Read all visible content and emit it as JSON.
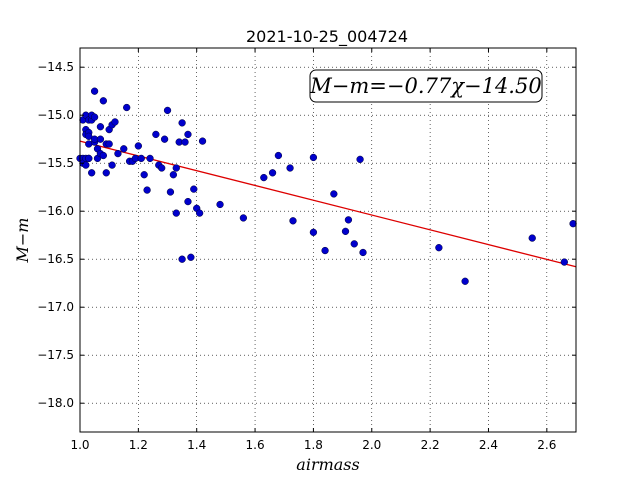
{
  "chart_data": {
    "type": "scatter",
    "title": "2021-10-25_004724",
    "xlabel": "airmass",
    "ylabel": "M−m",
    "annotation": "M−m=−0.77χ−14.50",
    "xlim": [
      1.0,
      2.7
    ],
    "ylim": [
      -18.3,
      -14.3
    ],
    "xticks": [
      "1.0",
      "1.2",
      "1.4",
      "1.6",
      "1.8",
      "2.0",
      "2.2",
      "2.4",
      "2.6"
    ],
    "yticks": [
      "−14.5",
      "−15.0",
      "−15.5",
      "−16.0",
      "−16.5",
      "−17.0",
      "−17.5",
      "−18.0"
    ],
    "grid": true,
    "colors": {
      "points": "#0000cc",
      "fit": "#dd0000"
    },
    "fit": {
      "slope": -0.77,
      "intercept": -14.5
    },
    "series": [
      {
        "x": [
          1.0,
          1.01,
          1.01,
          1.01,
          1.02,
          1.02,
          1.02,
          1.02,
          1.02,
          1.03,
          1.03,
          1.03,
          1.03,
          1.03,
          1.03,
          1.04,
          1.04,
          1.04,
          1.05,
          1.05,
          1.05,
          1.05,
          1.06,
          1.06,
          1.07,
          1.07,
          1.07,
          1.08,
          1.08,
          1.09,
          1.09,
          1.1,
          1.1,
          1.11,
          1.11,
          1.12,
          1.13,
          1.15,
          1.16,
          1.17,
          1.18,
          1.19,
          1.2,
          1.21,
          1.22,
          1.23,
          1.24,
          1.26,
          1.27,
          1.28,
          1.29,
          1.3,
          1.31,
          1.32,
          1.33,
          1.33,
          1.34,
          1.35,
          1.35,
          1.36,
          1.37,
          1.37,
          1.38,
          1.39,
          1.4,
          1.41,
          1.42,
          1.48,
          1.56,
          1.63,
          1.66,
          1.68,
          1.72,
          1.73,
          1.8,
          1.8,
          1.84,
          1.87,
          1.91,
          1.92,
          1.94,
          1.96,
          1.97,
          2.23,
          2.32,
          2.55,
          2.66,
          2.69
        ],
        "y": [
          -15.45,
          -15.45,
          -15.05,
          -15.5,
          -15.15,
          -15.45,
          -15.0,
          -15.52,
          -15.2,
          -15.05,
          -15.45,
          -15.18,
          -15.45,
          -15.22,
          -15.3,
          -15.6,
          -15.05,
          -15.0,
          -15.02,
          -14.75,
          -15.28,
          -15.25,
          -15.35,
          -15.45,
          -15.12,
          -15.25,
          -15.4,
          -14.85,
          -15.42,
          -15.6,
          -15.3,
          -15.3,
          -15.15,
          -15.1,
          -15.52,
          -15.07,
          -15.4,
          -15.35,
          -14.92,
          -15.48,
          -15.48,
          -15.45,
          -15.32,
          -15.45,
          -15.62,
          -15.78,
          -15.45,
          -15.2,
          -15.52,
          -15.55,
          -15.25,
          -14.95,
          -15.8,
          -15.62,
          -15.55,
          -16.02,
          -15.28,
          -15.08,
          -16.5,
          -15.28,
          -15.9,
          -15.2,
          -16.48,
          -15.77,
          -15.97,
          -16.02,
          -15.27,
          -15.93,
          -16.07,
          -15.65,
          -15.6,
          -15.42,
          -15.55,
          -16.1,
          -15.44,
          -16.22,
          -16.41,
          -15.82,
          -16.21,
          -16.09,
          -16.34,
          -15.46,
          -16.43,
          -16.38,
          -16.73,
          -16.28,
          -16.53,
          -16.13
        ]
      }
    ]
  }
}
